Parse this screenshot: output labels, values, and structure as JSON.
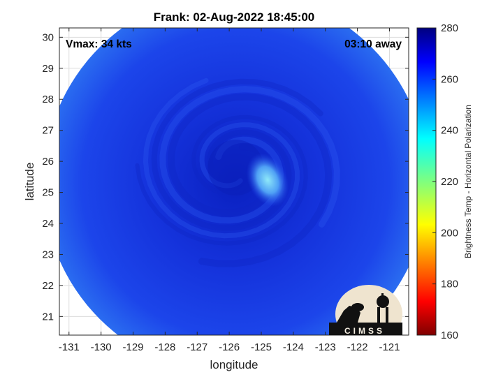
{
  "chart_data": {
    "type": "heatmap",
    "title": "Frank: 02-Aug-2022 18:45:00",
    "xlabel": "longitude",
    "ylabel": "latitude",
    "xlim": [
      -131.3,
      -120.4
    ],
    "ylim": [
      20.4,
      30.3
    ],
    "xticks": [
      -131,
      -130,
      -129,
      -128,
      -127,
      -126,
      -125,
      -124,
      -123,
      -122,
      -121
    ],
    "yticks": [
      21,
      22,
      23,
      24,
      25,
      26,
      27,
      28,
      29,
      30
    ],
    "grid": true,
    "annotations": {
      "vmax": "Vmax: 34 kts",
      "time_away": "03:10 away"
    },
    "storm_center": {
      "lon": -125.8,
      "lat": 25.8
    },
    "bright_spot": {
      "lon": -124.8,
      "lat": 25.4
    },
    "swath": {
      "center_lon": -125.8,
      "center_lat": 25.3,
      "radius_deg": 6.0
    },
    "colorbar": {
      "label": "Brightness Temp - Horizontal Polarization",
      "range": [
        160,
        280
      ],
      "ticks": [
        160,
        180,
        200,
        220,
        240,
        260,
        280
      ],
      "colormap": "jet"
    },
    "logo": "CIMSS"
  },
  "colors": {
    "swath_base": "#1a3fe8",
    "swath_dark": "#0b24c8",
    "swath_edge": "#2c6ff0",
    "bright": "#6ad8f5"
  }
}
